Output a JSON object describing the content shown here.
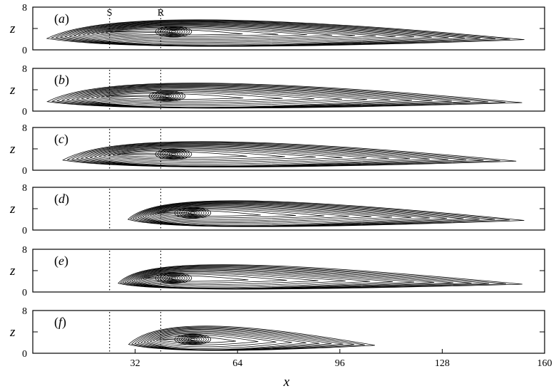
{
  "chart_data": {
    "type": "contour",
    "xlabel": "x",
    "ylabel": "z",
    "x_ticks": [
      32,
      64,
      96,
      128,
      160
    ],
    "y_ticks": [
      0,
      4,
      8
    ],
    "y_tick_labels": [
      "0",
      "",
      "8"
    ],
    "xlim": [
      0,
      160
    ],
    "ylim": [
      0,
      8
    ],
    "stations": [
      {
        "label": "S",
        "x": 24
      },
      {
        "label": "R",
        "x": 40
      }
    ],
    "panels": [
      {
        "label": "a",
        "onset": 3,
        "core_x": 44,
        "core_z": 3.4,
        "tail_x": 158,
        "levels": 16
      },
      {
        "label": "b",
        "onset": 3,
        "core_x": 42,
        "core_z": 2.8,
        "tail_x": 158,
        "levels": 14
      },
      {
        "label": "c",
        "onset": 8,
        "core_x": 44,
        "core_z": 3.0,
        "tail_x": 156,
        "levels": 14
      },
      {
        "label": "d",
        "onset": 29,
        "core_x": 50,
        "core_z": 3.2,
        "tail_x": 158,
        "levels": 15
      },
      {
        "label": "e",
        "onset": 26,
        "core_x": 44,
        "core_z": 2.6,
        "tail_x": 158,
        "levels": 14
      },
      {
        "label": "f",
        "onset": 29,
        "core_x": 50,
        "core_z": 2.6,
        "tail_x": 110,
        "levels": 12
      }
    ]
  }
}
